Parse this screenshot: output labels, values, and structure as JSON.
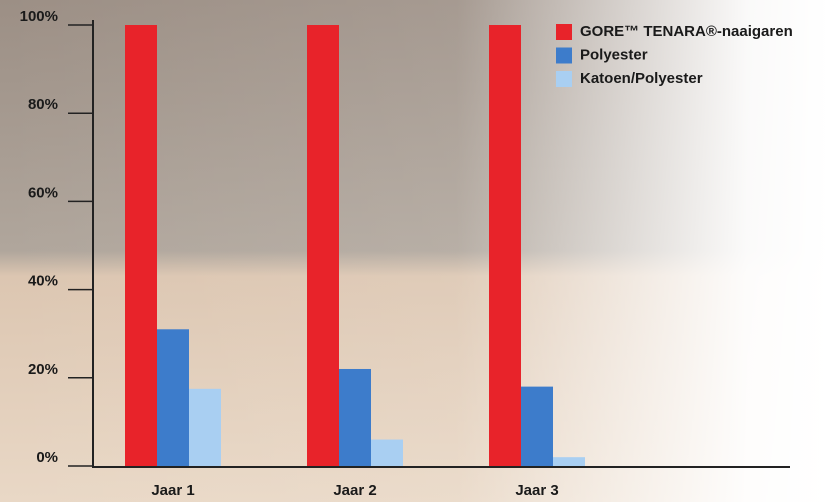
{
  "chart_data": {
    "type": "bar",
    "categories": [
      "Jaar 1",
      "Jaar 2",
      "Jaar 3"
    ],
    "series": [
      {
        "name": "GORE™ TENARA®-naaigaren",
        "color": "#e8232a",
        "values": [
          100,
          100,
          100
        ]
      },
      {
        "name": "Polyester",
        "color": "#3d7ccb",
        "values": [
          31,
          22,
          18
        ]
      },
      {
        "name": "Katoen/Polyester",
        "color": "#a9cff2",
        "values": [
          17.5,
          6,
          2
        ]
      }
    ],
    "ylim": [
      0,
      100
    ],
    "yticks": [
      {
        "value": 0,
        "label": "0%"
      },
      {
        "value": 20,
        "label": "20%"
      },
      {
        "value": 40,
        "label": "40%"
      },
      {
        "value": 60,
        "label": "60%"
      },
      {
        "value": 80,
        "label": "80%"
      },
      {
        "value": 100,
        "label": "100%"
      }
    ],
    "legend": "top-right"
  }
}
